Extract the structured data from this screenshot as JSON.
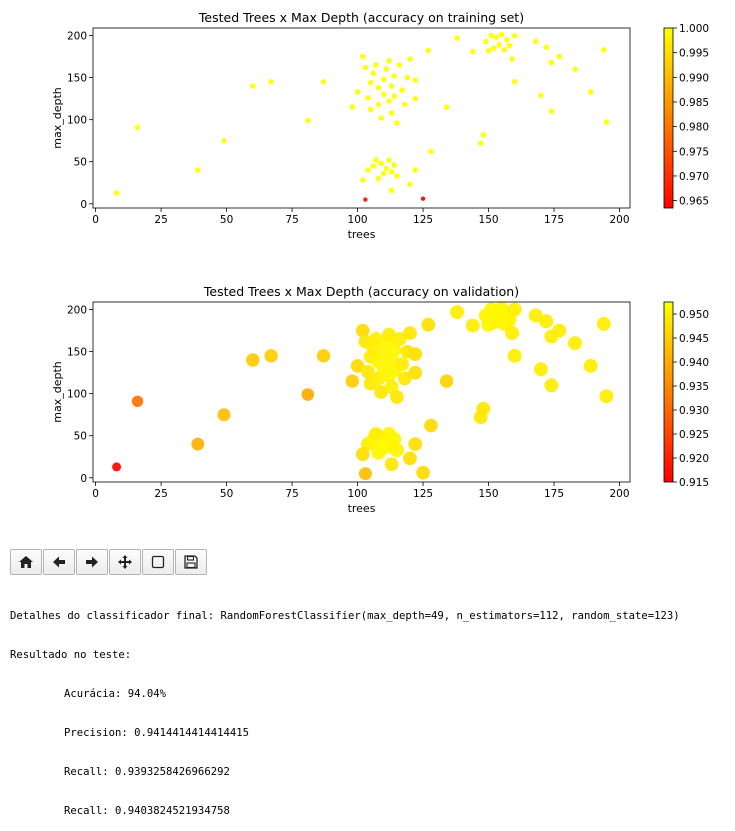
{
  "chart_data": [
    {
      "type": "scatter",
      "title": "Tested Trees x Max Depth (accuracy on training set)",
      "xlabel": "trees",
      "ylabel": "max_depth",
      "xlim": [
        -1,
        204
      ],
      "ylim": [
        -5,
        209
      ],
      "xticks": [
        "0",
        "25",
        "50",
        "75",
        "100",
        "125",
        "150",
        "175",
        "200"
      ],
      "yticks": [
        "0",
        "50",
        "100",
        "150",
        "200"
      ],
      "colormap": "autumn",
      "colorbar": {
        "min": 0.9635,
        "max": 1.0,
        "ticks": [
          "0.965",
          "0.970",
          "0.975",
          "0.980",
          "0.985",
          "0.990",
          "0.995",
          "1.000"
        ]
      },
      "grid": false,
      "points": [
        [
          8,
          13,
          1.0
        ],
        [
          16,
          91,
          1.0
        ],
        [
          39,
          40,
          1.0
        ],
        [
          49,
          75,
          1.0
        ],
        [
          60,
          140,
          1.0
        ],
        [
          67,
          145,
          1.0
        ],
        [
          81,
          99,
          1.0
        ],
        [
          87,
          145,
          1.0
        ],
        [
          98,
          115,
          1.0
        ],
        [
          100,
          133,
          1.0
        ],
        [
          102,
          175,
          1.0
        ],
        [
          103,
          162,
          1.0
        ],
        [
          104,
          126,
          1.0
        ],
        [
          105,
          112,
          1.0
        ],
        [
          105,
          144,
          1.0
        ],
        [
          106,
          155,
          1.0
        ],
        [
          107,
          165,
          1.0
        ],
        [
          108,
          118,
          1.0
        ],
        [
          108,
          138,
          1.0
        ],
        [
          109,
          102,
          1.0
        ],
        [
          110,
          148,
          1.0
        ],
        [
          110,
          130,
          1.0
        ],
        [
          111,
          160,
          1.0
        ],
        [
          112,
          122,
          1.0
        ],
        [
          112,
          170,
          1.0
        ],
        [
          113,
          108,
          1.0
        ],
        [
          113,
          140,
          1.0
        ],
        [
          114,
          152,
          1.0
        ],
        [
          114,
          128,
          1.0
        ],
        [
          115,
          96,
          1.0
        ],
        [
          116,
          165,
          1.0
        ],
        [
          117,
          135,
          1.0
        ],
        [
          118,
          118,
          1.0
        ],
        [
          119,
          150,
          1.0
        ],
        [
          120,
          172,
          1.0
        ],
        [
          122,
          125,
          1.0
        ],
        [
          122,
          147,
          1.0
        ],
        [
          127,
          182,
          1.0
        ],
        [
          104,
          40,
          1.0
        ],
        [
          106,
          45,
          1.0
        ],
        [
          108,
          30,
          1.0
        ],
        [
          109,
          48,
          1.0
        ],
        [
          110,
          36,
          1.0
        ],
        [
          111,
          42,
          1.0
        ],
        [
          112,
          52,
          1.0
        ],
        [
          113,
          38,
          1.0
        ],
        [
          114,
          46,
          1.0
        ],
        [
          115,
          33,
          1.0
        ],
        [
          107,
          52,
          1.0
        ],
        [
          102,
          28,
          1.0
        ],
        [
          113,
          16,
          1.0
        ],
        [
          120,
          23,
          1.0
        ],
        [
          122,
          40,
          1.0
        ],
        [
          128,
          62,
          1.0
        ],
        [
          125,
          6,
          0.9635
        ],
        [
          103,
          5,
          0.9655
        ],
        [
          134,
          115,
          1.0
        ],
        [
          138,
          197,
          1.0
        ],
        [
          144,
          181,
          1.0
        ],
        [
          147,
          72,
          1.0
        ],
        [
          148,
          82,
          1.0
        ],
        [
          149,
          193,
          1.0
        ],
        [
          150,
          182,
          1.0
        ],
        [
          151,
          200,
          1.0
        ],
        [
          152,
          185,
          1.0
        ],
        [
          153,
          198,
          1.0
        ],
        [
          154,
          189,
          1.0
        ],
        [
          155,
          201,
          1.0
        ],
        [
          156,
          183,
          1.0
        ],
        [
          157,
          195,
          1.0
        ],
        [
          158,
          188,
          1.0
        ],
        [
          160,
          145,
          1.0
        ],
        [
          160,
          200,
          1.0
        ],
        [
          159,
          172,
          1.0
        ],
        [
          168,
          193,
          1.0
        ],
        [
          170,
          129,
          1.0
        ],
        [
          172,
          186,
          1.0
        ],
        [
          174,
          110,
          1.0
        ],
        [
          174,
          168,
          1.0
        ],
        [
          177,
          175,
          1.0
        ],
        [
          183,
          160,
          1.0
        ],
        [
          189,
          133,
          1.0
        ],
        [
          194,
          183,
          1.0
        ],
        [
          195,
          97,
          1.0
        ]
      ]
    },
    {
      "type": "scatter",
      "title": "Tested Trees x Max Depth (accuracy on validation)",
      "xlabel": "trees",
      "ylabel": "max_depth",
      "xlim": [
        -1,
        204
      ],
      "ylim": [
        -5,
        209
      ],
      "xticks": [
        "0",
        "25",
        "50",
        "75",
        "100",
        "125",
        "150",
        "175",
        "200"
      ],
      "yticks": [
        "0",
        "50",
        "100",
        "150",
        "200"
      ],
      "colormap": "autumn",
      "colorbar": {
        "min": 0.915,
        "max": 0.9525,
        "ticks": [
          "0.915",
          "0.920",
          "0.925",
          "0.930",
          "0.935",
          "0.940",
          "0.945",
          "0.950"
        ]
      },
      "grid": false,
      "points": [
        [
          8,
          13,
          0.9155
        ],
        [
          16,
          91,
          0.932
        ],
        [
          39,
          40,
          0.941
        ],
        [
          49,
          75,
          0.943
        ],
        [
          60,
          140,
          0.945
        ],
        [
          67,
          145,
          0.945
        ],
        [
          81,
          99,
          0.94
        ],
        [
          87,
          145,
          0.945
        ],
        [
          98,
          115,
          0.945
        ],
        [
          100,
          133,
          0.947
        ],
        [
          102,
          175,
          0.947
        ],
        [
          103,
          162,
          0.949
        ],
        [
          104,
          126,
          0.949
        ],
        [
          105,
          112,
          0.949
        ],
        [
          105,
          144,
          0.95
        ],
        [
          106,
          155,
          0.95
        ],
        [
          107,
          165,
          0.95
        ],
        [
          108,
          118,
          0.95
        ],
        [
          108,
          138,
          0.951
        ],
        [
          109,
          102,
          0.949
        ],
        [
          110,
          148,
          0.951
        ],
        [
          110,
          130,
          0.951
        ],
        [
          111,
          160,
          0.951
        ],
        [
          112,
          122,
          0.951
        ],
        [
          112,
          170,
          0.95
        ],
        [
          113,
          108,
          0.95
        ],
        [
          113,
          140,
          0.951
        ],
        [
          114,
          152,
          0.951
        ],
        [
          114,
          128,
          0.951
        ],
        [
          115,
          96,
          0.949
        ],
        [
          116,
          165,
          0.95
        ],
        [
          117,
          135,
          0.95
        ],
        [
          118,
          118,
          0.949
        ],
        [
          119,
          150,
          0.949
        ],
        [
          120,
          172,
          0.949
        ],
        [
          122,
          125,
          0.948
        ],
        [
          122,
          147,
          0.948
        ],
        [
          127,
          182,
          0.948
        ],
        [
          104,
          40,
          0.95
        ],
        [
          106,
          45,
          0.951
        ],
        [
          108,
          30,
          0.951
        ],
        [
          109,
          48,
          0.951
        ],
        [
          110,
          36,
          0.952
        ],
        [
          111,
          42,
          0.952
        ],
        [
          112,
          52,
          0.951
        ],
        [
          113,
          38,
          0.952
        ],
        [
          114,
          46,
          0.951
        ],
        [
          115,
          33,
          0.951
        ],
        [
          107,
          52,
          0.95
        ],
        [
          102,
          28,
          0.948
        ],
        [
          113,
          16,
          0.949
        ],
        [
          120,
          23,
          0.948
        ],
        [
          122,
          40,
          0.948
        ],
        [
          128,
          62,
          0.947
        ],
        [
          125,
          6,
          0.947
        ],
        [
          103,
          5,
          0.943
        ],
        [
          134,
          115,
          0.946
        ],
        [
          138,
          197,
          0.95
        ],
        [
          144,
          181,
          0.95
        ],
        [
          147,
          72,
          0.949
        ],
        [
          148,
          82,
          0.949
        ],
        [
          149,
          193,
          0.951
        ],
        [
          150,
          182,
          0.951
        ],
        [
          151,
          200,
          0.951
        ],
        [
          152,
          185,
          0.951
        ],
        [
          153,
          198,
          0.952
        ],
        [
          154,
          189,
          0.951
        ],
        [
          155,
          201,
          0.951
        ],
        [
          156,
          183,
          0.951
        ],
        [
          157,
          195,
          0.951
        ],
        [
          158,
          188,
          0.951
        ],
        [
          160,
          145,
          0.95
        ],
        [
          160,
          200,
          0.95
        ],
        [
          159,
          172,
          0.95
        ],
        [
          168,
          193,
          0.95
        ],
        [
          170,
          129,
          0.95
        ],
        [
          172,
          186,
          0.95
        ],
        [
          174,
          110,
          0.95
        ],
        [
          174,
          168,
          0.95
        ],
        [
          177,
          175,
          0.95
        ],
        [
          183,
          160,
          0.95
        ],
        [
          189,
          133,
          0.95
        ],
        [
          194,
          183,
          0.95
        ],
        [
          195,
          97,
          0.95
        ]
      ]
    }
  ],
  "toolbar": {
    "buttons": [
      {
        "name": "home-button",
        "icon": "home-icon"
      },
      {
        "name": "back-button",
        "icon": "arrow-left-icon"
      },
      {
        "name": "forward-button",
        "icon": "arrow-right-icon"
      },
      {
        "name": "pan-button",
        "icon": "move-icon"
      },
      {
        "name": "zoom-button",
        "icon": "zoom-rect-icon"
      },
      {
        "name": "save-button",
        "icon": "save-icon"
      }
    ]
  },
  "output": {
    "line1": "Detalhes do classificador final: RandomForestClassifier(max_depth=49, n_estimators=112, random_state=123)",
    "line2": "Resultado no teste:",
    "line3": "Acurácia: 94.04%",
    "line4": "Precision: 0.9414414414414415",
    "line5": "Recall: 0.9393258426966292",
    "line6": "Recall: 0.9403824521934758"
  }
}
